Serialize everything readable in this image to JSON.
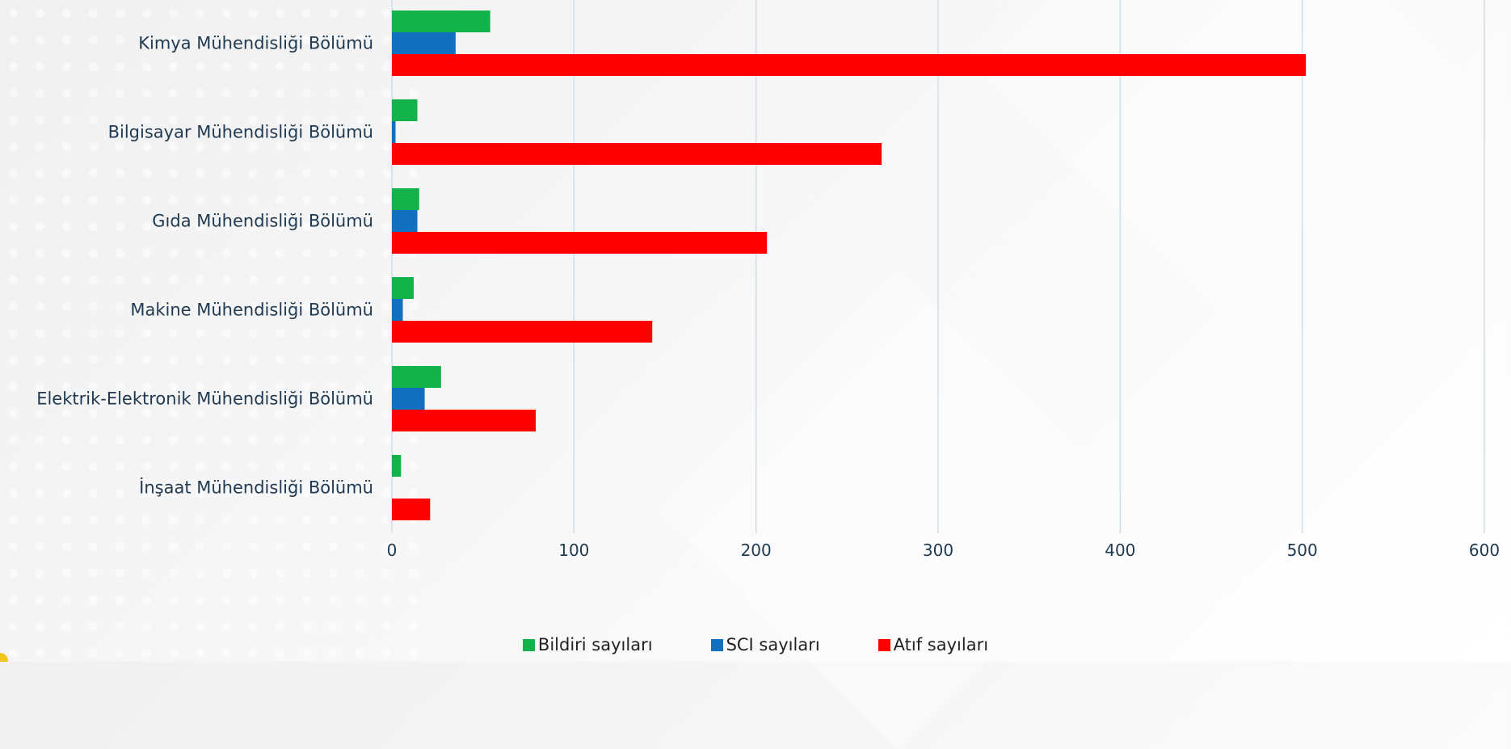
{
  "chart_data": {
    "type": "bar",
    "orientation": "horizontal",
    "categories": [
      "Kimya Mühendisliği Bölümü",
      "Bilgisayar Mühendisliği Bölümü",
      "Gıda Mühendisliği Bölümü",
      "Makine Mühendisliği Bölümü",
      "Elektrik-Elektronik Mühendisliği Bölümü",
      "İnşaat Mühendisliği Bölümü"
    ],
    "series": [
      {
        "name": "Bildiri sayıları",
        "color": "#13b24a",
        "values": [
          54,
          14,
          15,
          12,
          27,
          5
        ]
      },
      {
        "name": "SCI sayıları",
        "color": "#1270c1",
        "values": [
          35,
          2,
          14,
          6,
          18,
          0
        ]
      },
      {
        "name": "Atıf sayıları",
        "color": "#ff0000",
        "values": [
          502,
          269,
          206,
          143,
          79,
          21
        ]
      }
    ],
    "xlim": [
      0,
      600
    ],
    "xticks": [
      "0",
      "100",
      "200",
      "300",
      "400",
      "500",
      "600"
    ],
    "grid": true,
    "legend_position": "bottom"
  }
}
